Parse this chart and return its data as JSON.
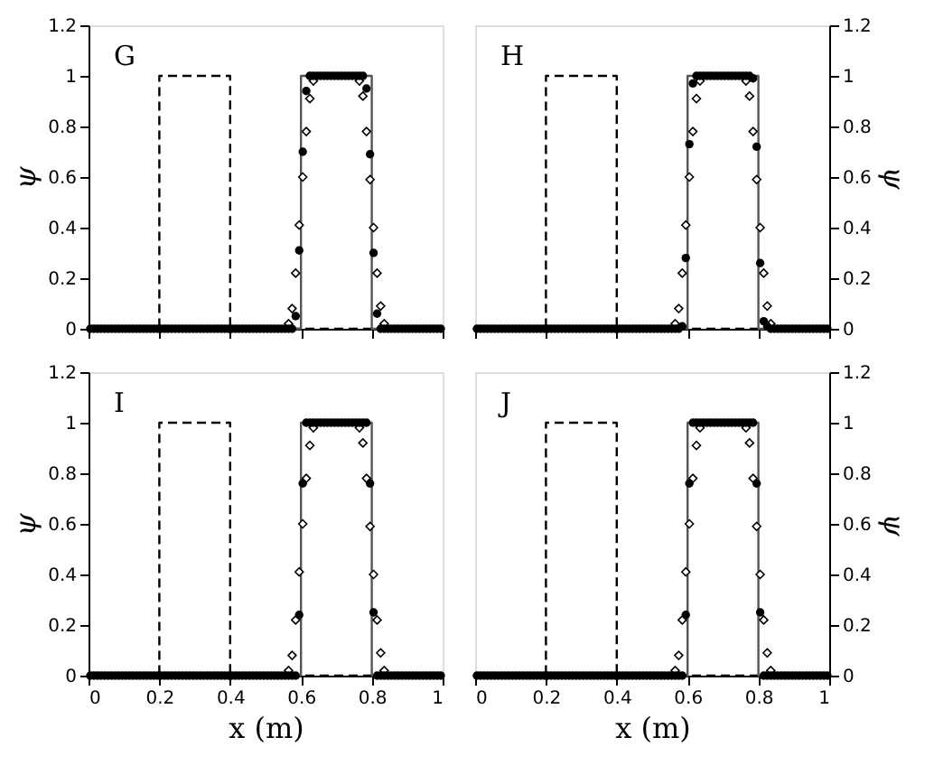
{
  "chart_data": [
    {
      "type": "scatter",
      "annotations": [
        "G"
      ],
      "ylabel": "ψ",
      "xlim": [
        0,
        1
      ],
      "xticks": [
        0,
        0.2,
        0.4,
        0.6,
        0.8,
        1
      ],
      "ylim": [
        0,
        1.2
      ],
      "yticks": [
        0,
        0.2,
        0.4,
        0.6,
        0.8,
        1,
        1.2
      ],
      "tick_labels": "y",
      "x": [
        0.005,
        0.015,
        0.025,
        0.035,
        0.045,
        0.055,
        0.065,
        0.075,
        0.085,
        0.095,
        0.105,
        0.115,
        0.125,
        0.135,
        0.145,
        0.155,
        0.165,
        0.175,
        0.185,
        0.195,
        0.205,
        0.215,
        0.225,
        0.235,
        0.245,
        0.255,
        0.265,
        0.275,
        0.285,
        0.295,
        0.305,
        0.315,
        0.325,
        0.335,
        0.345,
        0.355,
        0.365,
        0.375,
        0.385,
        0.395,
        0.405,
        0.415,
        0.425,
        0.435,
        0.445,
        0.455,
        0.465,
        0.475,
        0.485,
        0.495,
        0.505,
        0.515,
        0.525,
        0.535,
        0.545,
        0.555,
        0.565,
        0.575,
        0.585,
        0.595,
        0.605,
        0.615,
        0.625,
        0.635,
        0.645,
        0.655,
        0.665,
        0.675,
        0.685,
        0.695,
        0.705,
        0.715,
        0.725,
        0.735,
        0.745,
        0.755,
        0.765,
        0.775,
        0.785,
        0.795,
        0.805,
        0.815,
        0.825,
        0.835,
        0.845,
        0.855,
        0.865,
        0.875,
        0.885,
        0.895,
        0.905,
        0.915,
        0.925,
        0.935,
        0.945,
        0.955,
        0.965,
        0.975,
        0.985,
        0.995
      ],
      "series": [
        {
          "type": "line",
          "x": [
            0,
            0.2,
            0.2,
            0.4,
            0.4,
            1
          ],
          "values": [
            0,
            0,
            1,
            1,
            0,
            0
          ],
          "color": "#000000",
          "line_style": "dashed",
          "marker": "none"
        },
        {
          "type": "line",
          "x": [
            0,
            0.6,
            0.6,
            0.8,
            0.8,
            1
          ],
          "values": [
            0,
            0,
            1,
            1,
            0,
            0
          ],
          "color": "#555555",
          "line_style": "solid",
          "marker": "none"
        },
        {
          "type": "scatter",
          "marker": "diamond",
          "color": "#000000",
          "values": [
            null,
            null,
            null,
            null,
            null,
            null,
            null,
            null,
            null,
            null,
            null,
            null,
            null,
            null,
            null,
            null,
            null,
            null,
            null,
            null,
            null,
            null,
            null,
            null,
            null,
            null,
            null,
            null,
            null,
            null,
            null,
            null,
            null,
            null,
            null,
            null,
            null,
            null,
            null,
            null,
            null,
            null,
            null,
            null,
            null,
            null,
            null,
            null,
            null,
            null,
            null,
            null,
            null,
            null,
            null,
            null,
            0.02,
            0.08,
            0.22,
            0.41,
            0.6,
            0.78,
            0.91,
            0.98,
            null,
            null,
            null,
            null,
            null,
            null,
            null,
            null,
            null,
            null,
            null,
            null,
            0.98,
            0.92,
            0.78,
            0.59,
            0.4,
            0.22,
            0.09,
            0.02,
            null,
            null,
            null,
            null,
            null,
            null,
            null,
            null,
            null,
            null,
            null,
            null,
            null,
            null,
            null,
            null
          ]
        },
        {
          "type": "scatter",
          "marker": "circle",
          "color": "#000000",
          "values": [
            0,
            0,
            0,
            0,
            0,
            0,
            0,
            0,
            0,
            0,
            0,
            0,
            0,
            0,
            0,
            0,
            0,
            0,
            0,
            0,
            0,
            0,
            0,
            0,
            0,
            0,
            0,
            0,
            0,
            0,
            0,
            0,
            0,
            0,
            0,
            0,
            0,
            0,
            0,
            0,
            0,
            0,
            0,
            0,
            0,
            0,
            0,
            0,
            0,
            0,
            0,
            0,
            0,
            0,
            0,
            0,
            0,
            0,
            0.05,
            0.31,
            0.7,
            0.94,
            1,
            1,
            1,
            1,
            1,
            1,
            1,
            1,
            1,
            1,
            1,
            1,
            1,
            1,
            1,
            1,
            0.95,
            0.69,
            0.3,
            0.06,
            0,
            0,
            0,
            0,
            0,
            0,
            0,
            0,
            0,
            0,
            0,
            0,
            0,
            0,
            0,
            0,
            0,
            0
          ]
        }
      ]
    },
    {
      "type": "scatter",
      "annotations": [
        "H"
      ],
      "y2label": "ψ",
      "xlim": [
        0,
        1
      ],
      "xticks": [
        0,
        0.2,
        0.4,
        0.6,
        0.8,
        1
      ],
      "y2lim": [
        0,
        1.2
      ],
      "y2ticks": [
        0,
        0.2,
        0.4,
        0.6,
        0.8,
        1,
        1.2
      ],
      "tick_labels": "y",
      "x": [
        0.005,
        0.015,
        0.025,
        0.035,
        0.045,
        0.055,
        0.065,
        0.075,
        0.085,
        0.095,
        0.105,
        0.115,
        0.125,
        0.135,
        0.145,
        0.155,
        0.165,
        0.175,
        0.185,
        0.195,
        0.205,
        0.215,
        0.225,
        0.235,
        0.245,
        0.255,
        0.265,
        0.275,
        0.285,
        0.295,
        0.305,
        0.315,
        0.325,
        0.335,
        0.345,
        0.355,
        0.365,
        0.375,
        0.385,
        0.395,
        0.405,
        0.415,
        0.425,
        0.435,
        0.445,
        0.455,
        0.465,
        0.475,
        0.485,
        0.495,
        0.505,
        0.515,
        0.525,
        0.535,
        0.545,
        0.555,
        0.565,
        0.575,
        0.585,
        0.595,
        0.605,
        0.615,
        0.625,
        0.635,
        0.645,
        0.655,
        0.665,
        0.675,
        0.685,
        0.695,
        0.705,
        0.715,
        0.725,
        0.735,
        0.745,
        0.755,
        0.765,
        0.775,
        0.785,
        0.795,
        0.805,
        0.815,
        0.825,
        0.835,
        0.845,
        0.855,
        0.865,
        0.875,
        0.885,
        0.895,
        0.905,
        0.915,
        0.925,
        0.935,
        0.945,
        0.955,
        0.965,
        0.975,
        0.985,
        0.995
      ],
      "series": [
        {
          "type": "line",
          "axis": "y2",
          "x": [
            0,
            0.2,
            0.2,
            0.4,
            0.4,
            1
          ],
          "values": [
            0,
            0,
            1,
            1,
            0,
            0
          ],
          "color": "#000000",
          "line_style": "dashed",
          "marker": "none"
        },
        {
          "type": "line",
          "axis": "y2",
          "x": [
            0,
            0.6,
            0.6,
            0.8,
            0.8,
            1
          ],
          "values": [
            0,
            0,
            1,
            1,
            0,
            0
          ],
          "color": "#555555",
          "line_style": "solid",
          "marker": "none"
        },
        {
          "type": "scatter",
          "axis": "y2",
          "marker": "diamond",
          "color": "#000000",
          "values": [
            null,
            null,
            null,
            null,
            null,
            null,
            null,
            null,
            null,
            null,
            null,
            null,
            null,
            null,
            null,
            null,
            null,
            null,
            null,
            null,
            null,
            null,
            null,
            null,
            null,
            null,
            null,
            null,
            null,
            null,
            null,
            null,
            null,
            null,
            null,
            null,
            null,
            null,
            null,
            null,
            null,
            null,
            null,
            null,
            null,
            null,
            null,
            null,
            null,
            null,
            null,
            null,
            null,
            null,
            null,
            null,
            0.02,
            0.08,
            0.22,
            0.41,
            0.6,
            0.78,
            0.91,
            0.98,
            null,
            null,
            null,
            null,
            null,
            null,
            null,
            null,
            null,
            null,
            null,
            null,
            0.98,
            0.92,
            0.78,
            0.59,
            0.4,
            0.22,
            0.09,
            0.02,
            null,
            null,
            null,
            null,
            null,
            null,
            null,
            null,
            null,
            null,
            null,
            null,
            null,
            null,
            null,
            null
          ]
        },
        {
          "type": "scatter",
          "axis": "y2",
          "marker": "circle",
          "color": "#000000",
          "values": [
            0,
            0,
            0,
            0,
            0,
            0,
            0,
            0,
            0,
            0,
            0,
            0,
            0,
            0,
            0,
            0,
            0,
            0,
            0,
            0,
            0,
            0,
            0,
            0,
            0,
            0,
            0,
            0,
            0,
            0,
            0,
            0,
            0,
            0,
            0,
            0,
            0,
            0,
            0,
            0,
            0,
            0,
            0,
            0,
            0,
            0,
            0,
            0,
            0,
            0,
            0,
            0,
            0,
            0,
            0,
            0,
            0,
            0,
            0.01,
            0.28,
            0.73,
            0.97,
            1,
            1,
            1,
            1,
            1,
            1,
            1,
            1,
            1,
            1,
            1,
            1,
            1,
            1,
            1,
            1,
            0.99,
            0.72,
            0.26,
            0.03,
            0.01,
            0,
            0,
            0,
            0,
            0,
            0,
            0,
            0,
            0,
            0,
            0,
            0,
            0,
            0,
            0,
            0,
            0
          ]
        }
      ]
    },
    {
      "type": "scatter",
      "annotations": [
        "I"
      ],
      "xlabel": "x (m)",
      "ylabel": "ψ",
      "xlim": [
        0,
        1
      ],
      "xticks": [
        0,
        0.2,
        0.4,
        0.6,
        0.8,
        1
      ],
      "ylim": [
        0,
        1.2
      ],
      "yticks": [
        0,
        0.2,
        0.4,
        0.6,
        0.8,
        1,
        1.2
      ],
      "x": [
        0.005,
        0.015,
        0.025,
        0.035,
        0.045,
        0.055,
        0.065,
        0.075,
        0.085,
        0.095,
        0.105,
        0.115,
        0.125,
        0.135,
        0.145,
        0.155,
        0.165,
        0.175,
        0.185,
        0.195,
        0.205,
        0.215,
        0.225,
        0.235,
        0.245,
        0.255,
        0.265,
        0.275,
        0.285,
        0.295,
        0.305,
        0.315,
        0.325,
        0.335,
        0.345,
        0.355,
        0.365,
        0.375,
        0.385,
        0.395,
        0.405,
        0.415,
        0.425,
        0.435,
        0.445,
        0.455,
        0.465,
        0.475,
        0.485,
        0.495,
        0.505,
        0.515,
        0.525,
        0.535,
        0.545,
        0.555,
        0.565,
        0.575,
        0.585,
        0.595,
        0.605,
        0.615,
        0.625,
        0.635,
        0.645,
        0.655,
        0.665,
        0.675,
        0.685,
        0.695,
        0.705,
        0.715,
        0.725,
        0.735,
        0.745,
        0.755,
        0.765,
        0.775,
        0.785,
        0.795,
        0.805,
        0.815,
        0.825,
        0.835,
        0.845,
        0.855,
        0.865,
        0.875,
        0.885,
        0.895,
        0.905,
        0.915,
        0.925,
        0.935,
        0.945,
        0.955,
        0.965,
        0.975,
        0.985,
        0.995
      ],
      "series": [
        {
          "type": "line",
          "x": [
            0,
            0.2,
            0.2,
            0.4,
            0.4,
            1
          ],
          "values": [
            0,
            0,
            1,
            1,
            0,
            0
          ],
          "color": "#000000",
          "line_style": "dashed",
          "marker": "none"
        },
        {
          "type": "line",
          "x": [
            0,
            0.6,
            0.6,
            0.8,
            0.8,
            1
          ],
          "values": [
            0,
            0,
            1,
            1,
            0,
            0
          ],
          "color": "#555555",
          "line_style": "solid",
          "marker": "none"
        },
        {
          "type": "scatter",
          "marker": "diamond",
          "color": "#000000",
          "values": [
            null,
            null,
            null,
            null,
            null,
            null,
            null,
            null,
            null,
            null,
            null,
            null,
            null,
            null,
            null,
            null,
            null,
            null,
            null,
            null,
            null,
            null,
            null,
            null,
            null,
            null,
            null,
            null,
            null,
            null,
            null,
            null,
            null,
            null,
            null,
            null,
            null,
            null,
            null,
            null,
            null,
            null,
            null,
            null,
            null,
            null,
            null,
            null,
            null,
            null,
            null,
            null,
            null,
            null,
            null,
            null,
            0.02,
            0.08,
            0.22,
            0.41,
            0.6,
            0.78,
            0.91,
            0.98,
            null,
            null,
            null,
            null,
            null,
            null,
            null,
            null,
            null,
            null,
            null,
            null,
            0.98,
            0.92,
            0.78,
            0.59,
            0.4,
            0.22,
            0.09,
            0.02,
            null,
            null,
            null,
            null,
            null,
            null,
            null,
            null,
            null,
            null,
            null,
            null,
            null,
            null,
            null,
            null
          ]
        },
        {
          "type": "scatter",
          "marker": "circle",
          "color": "#000000",
          "values": [
            0,
            0,
            0,
            0,
            0,
            0,
            0,
            0,
            0,
            0,
            0,
            0,
            0,
            0,
            0,
            0,
            0,
            0,
            0,
            0,
            0,
            0,
            0,
            0,
            0,
            0,
            0,
            0,
            0,
            0,
            0,
            0,
            0,
            0,
            0,
            0,
            0,
            0,
            0,
            0,
            0,
            0,
            0,
            0,
            0,
            0,
            0,
            0,
            0,
            0,
            0,
            0,
            0,
            0,
            0,
            0,
            0,
            0,
            0,
            0.24,
            0.76,
            1,
            1,
            1,
            1,
            1,
            1,
            1,
            1,
            1,
            1,
            1,
            1,
            1,
            1,
            1,
            1,
            1,
            1,
            0.76,
            0.25,
            0,
            0,
            0,
            0,
            0,
            0,
            0,
            0,
            0,
            0,
            0,
            0,
            0,
            0,
            0,
            0,
            0,
            0,
            0
          ]
        }
      ]
    },
    {
      "type": "scatter",
      "annotations": [
        "J"
      ],
      "xlabel": "x (m)",
      "y2label": "ψ",
      "xlim": [
        0,
        1
      ],
      "xticks": [
        0,
        0.2,
        0.4,
        0.6,
        0.8,
        1
      ],
      "y2lim": [
        0,
        1.2
      ],
      "y2ticks": [
        0,
        0.2,
        0.4,
        0.6,
        0.8,
        1,
        1.2
      ],
      "x": [
        0.005,
        0.015,
        0.025,
        0.035,
        0.045,
        0.055,
        0.065,
        0.075,
        0.085,
        0.095,
        0.105,
        0.115,
        0.125,
        0.135,
        0.145,
        0.155,
        0.165,
        0.175,
        0.185,
        0.195,
        0.205,
        0.215,
        0.225,
        0.235,
        0.245,
        0.255,
        0.265,
        0.275,
        0.285,
        0.295,
        0.305,
        0.315,
        0.325,
        0.335,
        0.345,
        0.355,
        0.365,
        0.375,
        0.385,
        0.395,
        0.405,
        0.415,
        0.425,
        0.435,
        0.445,
        0.455,
        0.465,
        0.475,
        0.485,
        0.495,
        0.505,
        0.515,
        0.525,
        0.535,
        0.545,
        0.555,
        0.565,
        0.575,
        0.585,
        0.595,
        0.605,
        0.615,
        0.625,
        0.635,
        0.645,
        0.655,
        0.665,
        0.675,
        0.685,
        0.695,
        0.705,
        0.715,
        0.725,
        0.735,
        0.745,
        0.755,
        0.765,
        0.775,
        0.785,
        0.795,
        0.805,
        0.815,
        0.825,
        0.835,
        0.845,
        0.855,
        0.865,
        0.875,
        0.885,
        0.895,
        0.905,
        0.915,
        0.925,
        0.935,
        0.945,
        0.955,
        0.965,
        0.975,
        0.985,
        0.995
      ],
      "series": [
        {
          "type": "line",
          "axis": "y2",
          "x": [
            0,
            0.2,
            0.2,
            0.4,
            0.4,
            1
          ],
          "values": [
            0,
            0,
            1,
            1,
            0,
            0
          ],
          "color": "#000000",
          "line_style": "dashed",
          "marker": "none"
        },
        {
          "type": "line",
          "axis": "y2",
          "x": [
            0,
            0.6,
            0.6,
            0.8,
            0.8,
            1
          ],
          "values": [
            0,
            0,
            1,
            1,
            0,
            0
          ],
          "color": "#555555",
          "line_style": "solid",
          "marker": "none"
        },
        {
          "type": "scatter",
          "axis": "y2",
          "marker": "diamond",
          "color": "#000000",
          "values": [
            null,
            null,
            null,
            null,
            null,
            null,
            null,
            null,
            null,
            null,
            null,
            null,
            null,
            null,
            null,
            null,
            null,
            null,
            null,
            null,
            null,
            null,
            null,
            null,
            null,
            null,
            null,
            null,
            null,
            null,
            null,
            null,
            null,
            null,
            null,
            null,
            null,
            null,
            null,
            null,
            null,
            null,
            null,
            null,
            null,
            null,
            null,
            null,
            null,
            null,
            null,
            null,
            null,
            null,
            null,
            null,
            0.02,
            0.08,
            0.22,
            0.41,
            0.6,
            0.78,
            0.91,
            0.98,
            null,
            null,
            null,
            null,
            null,
            null,
            null,
            null,
            null,
            null,
            null,
            null,
            0.98,
            0.92,
            0.78,
            0.59,
            0.4,
            0.22,
            0.09,
            0.02,
            null,
            null,
            null,
            null,
            null,
            null,
            null,
            null,
            null,
            null,
            null,
            null,
            null,
            null,
            null,
            null
          ]
        },
        {
          "type": "scatter",
          "axis": "y2",
          "marker": "circle",
          "color": "#000000",
          "values": [
            0,
            0,
            0,
            0,
            0,
            0,
            0,
            0,
            0,
            0,
            0,
            0,
            0,
            0,
            0,
            0,
            0,
            0,
            0,
            0,
            0,
            0,
            0,
            0,
            0,
            0,
            0,
            0,
            0,
            0,
            0,
            0,
            0,
            0,
            0,
            0,
            0,
            0,
            0,
            0,
            0,
            0,
            0,
            0,
            0,
            0,
            0,
            0,
            0,
            0,
            0,
            0,
            0,
            0,
            0,
            0,
            0,
            0,
            0,
            0.24,
            0.76,
            1,
            1,
            1,
            1,
            1,
            1,
            1,
            1,
            1,
            1,
            1,
            1,
            1,
            1,
            1,
            1,
            1,
            1,
            0.76,
            0.25,
            0,
            0,
            0,
            0,
            0,
            0,
            0,
            0,
            0,
            0,
            0,
            0,
            0,
            0,
            0,
            0,
            0,
            0,
            0
          ]
        }
      ]
    }
  ]
}
